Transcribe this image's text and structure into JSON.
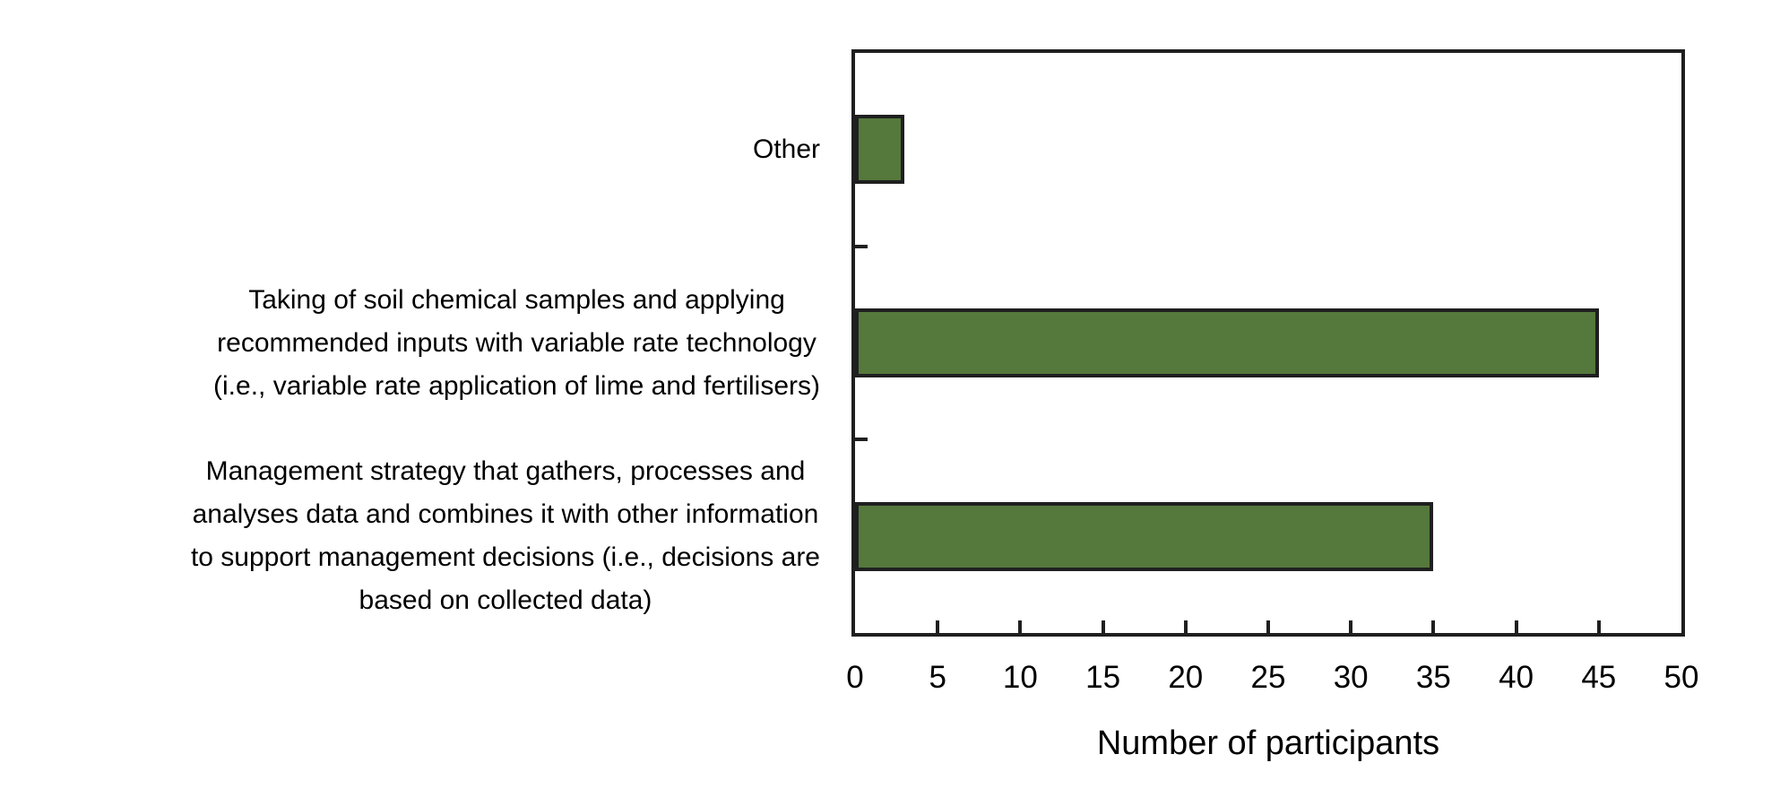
{
  "chart_data": {
    "type": "bar",
    "orientation": "horizontal",
    "categories": [
      "Other",
      "Taking of soil chemical samples and applying recommended inputs with variable rate technology (i.e., variable rate application of lime and fertilisers)",
      "Management strategy that gathers, processes and analyses data and combines it with other information to support management decisions (i.e., decisions are based on collected data)"
    ],
    "category_label_lines": [
      [
        "Other"
      ],
      [
        "Taking of soil chemical samples and applying",
        "recommended inputs with variable rate technology",
        "(i.e., variable rate application of lime and fertilisers)"
      ],
      [
        "Management strategy that gathers, processes and",
        "analyses data and combines it with other information",
        "to support management decisions (i.e., decisions are",
        "based on collected data)"
      ]
    ],
    "values": [
      3,
      45,
      35
    ],
    "xlabel": "Number of participants",
    "xlim": [
      0,
      50
    ],
    "x_ticks": [
      0,
      5,
      10,
      15,
      20,
      25,
      30,
      35,
      40,
      45,
      50
    ],
    "grid": false,
    "legend": false,
    "bar_fill_color": "#55783C",
    "bar_border_color": "#1F1F1F",
    "axis_color": "#1F1F1F",
    "text_color": "#000000",
    "background_color": "#FFFFFF"
  }
}
